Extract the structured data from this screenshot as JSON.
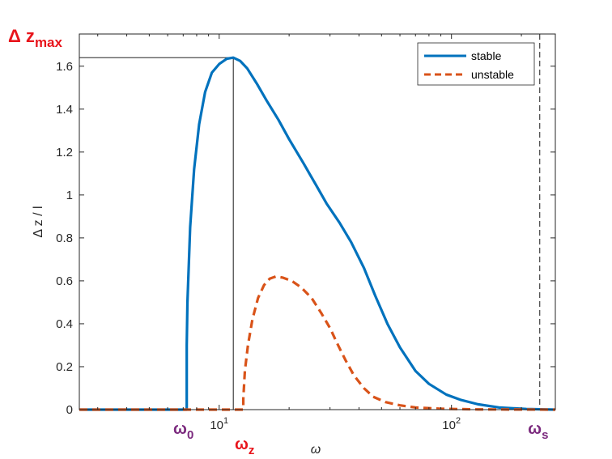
{
  "chart_data": {
    "type": "line",
    "xlabel": "ω",
    "ylabel": "Δ z / l",
    "xscale": "log",
    "xlim": [
      2.5,
      280
    ],
    "ylim": [
      0,
      1.75
    ],
    "yticks": [
      0,
      0.2,
      0.4,
      0.6,
      0.8,
      1,
      1.2,
      1.4,
      1.6
    ],
    "ytick_labels": [
      "0",
      "0.2",
      "0.4",
      "0.6",
      "0.8",
      "1",
      "1.2",
      "1.4",
      "1.6"
    ],
    "xticks": [
      {
        "value": 10,
        "base": "10",
        "exp": "1"
      },
      {
        "value": 100,
        "base": "10",
        "exp": "2"
      }
    ],
    "legend_position": "top-right",
    "grid": false,
    "series": [
      {
        "name": "stable",
        "style": "solid",
        "color": "#0072BD",
        "points": [
          [
            2.5,
            0
          ],
          [
            7.25,
            0
          ],
          [
            7.25,
            0.3
          ],
          [
            7.3,
            0.5
          ],
          [
            7.5,
            0.85
          ],
          [
            7.8,
            1.12
          ],
          [
            8.2,
            1.33
          ],
          [
            8.7,
            1.48
          ],
          [
            9.3,
            1.57
          ],
          [
            10,
            1.61
          ],
          [
            10.8,
            1.635
          ],
          [
            11.5,
            1.64
          ],
          [
            12.3,
            1.625
          ],
          [
            13.2,
            1.59
          ],
          [
            14.5,
            1.52
          ],
          [
            16,
            1.44
          ],
          [
            18,
            1.35
          ],
          [
            20,
            1.26
          ],
          [
            23,
            1.15
          ],
          [
            26,
            1.05
          ],
          [
            29,
            0.96
          ],
          [
            33,
            0.87
          ],
          [
            37,
            0.78
          ],
          [
            42,
            0.66
          ],
          [
            47,
            0.53
          ],
          [
            53,
            0.4
          ],
          [
            60,
            0.29
          ],
          [
            70,
            0.18
          ],
          [
            80,
            0.12
          ],
          [
            95,
            0.07
          ],
          [
            110,
            0.045
          ],
          [
            130,
            0.025
          ],
          [
            160,
            0.01
          ],
          [
            210,
            0.003
          ],
          [
            280,
            0
          ]
        ]
      },
      {
        "name": "unstable",
        "style": "dashed",
        "color": "#D95319",
        "points": [
          [
            2.5,
            0
          ],
          [
            12.7,
            0
          ],
          [
            12.7,
            0.05
          ],
          [
            12.9,
            0.18
          ],
          [
            13.3,
            0.3
          ],
          [
            13.9,
            0.42
          ],
          [
            14.7,
            0.52
          ],
          [
            15.6,
            0.58
          ],
          [
            16.5,
            0.61
          ],
          [
            17.5,
            0.62
          ],
          [
            18.8,
            0.615
          ],
          [
            20.5,
            0.6
          ],
          [
            22.5,
            0.57
          ],
          [
            25,
            0.52
          ],
          [
            27.5,
            0.45
          ],
          [
            30,
            0.38
          ],
          [
            32.5,
            0.3
          ],
          [
            35,
            0.23
          ],
          [
            38,
            0.16
          ],
          [
            42,
            0.1
          ],
          [
            46,
            0.06
          ],
          [
            52,
            0.035
          ],
          [
            60,
            0.02
          ],
          [
            70,
            0.01
          ],
          [
            90,
            0.004
          ],
          [
            130,
            0.001
          ],
          [
            280,
            0
          ]
        ]
      }
    ],
    "reference_lines": [
      {
        "type": "horizontal_to_peak",
        "y": 1.64,
        "x_end": 11.5,
        "style": "solid"
      },
      {
        "type": "vertical",
        "x": 11.5,
        "style": "solid"
      },
      {
        "type": "vertical",
        "x": 240,
        "style": "dashed"
      }
    ],
    "annotations": [
      {
        "id": "dz_max",
        "prefix": "Δ z",
        "sub": "max",
        "color": "red",
        "anchor": "y_top"
      },
      {
        "id": "omega_0",
        "prefix": "ω",
        "sub": "0",
        "color": "purple",
        "x": 7.25
      },
      {
        "id": "omega_z",
        "prefix": "ω",
        "sub": "z",
        "color": "red",
        "x": 11.5
      },
      {
        "id": "omega_s",
        "prefix": "ω",
        "sub": "s",
        "color": "purple",
        "x": 240
      }
    ]
  }
}
